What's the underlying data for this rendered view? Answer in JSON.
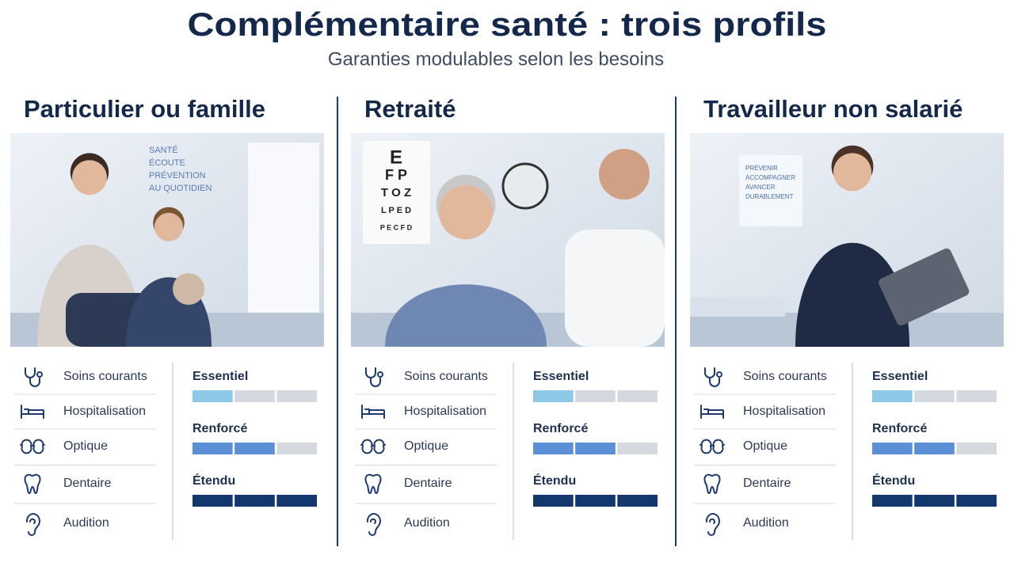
{
  "header": {
    "title": "Complémentaire santé : trois profils",
    "subtitle": "Garanties modulables selon les besoins"
  },
  "profiles": [
    {
      "title": "Particulier ou famille",
      "photo_text": [
        "SANTÉ",
        "ÉCOUTE",
        "PRÉVENTION",
        "AU QUOTIDIEN"
      ],
      "items": [
        "Soins courants",
        "Hospitalisation",
        "Optique",
        "Dentaire",
        "Audition"
      ],
      "levels": [
        {
          "name": "Essentiel",
          "filled": 1,
          "total": 3
        },
        {
          "name": "Renforcé",
          "filled": 2,
          "total": 3
        },
        {
          "name": "Étendu",
          "filled": 3,
          "total": 3
        }
      ]
    },
    {
      "title": "Retraité",
      "photo_text": [
        "E",
        "F P",
        "T O Z",
        "L P E D",
        "P E C F D"
      ],
      "items": [
        "Soins courants",
        "Hospitalisation",
        "Optique",
        "Dentaire",
        "Audition"
      ],
      "levels": [
        {
          "name": "Essentiel",
          "filled": 1,
          "total": 3
        },
        {
          "name": "Renforcé",
          "filled": 2,
          "total": 3
        },
        {
          "name": "Étendu",
          "filled": 3,
          "total": 3
        }
      ]
    },
    {
      "title": "Travailleur non salarié",
      "photo_text": [
        "PRÉVENIR",
        "ACCOMPAGNER",
        "AVANCER",
        "DURABLEMENT"
      ],
      "items": [
        "Soins courants",
        "Hospitalisation",
        "Optique",
        "Dentaire",
        "Audition"
      ],
      "levels": [
        {
          "name": "Essentiel",
          "filled": 1,
          "total": 3
        },
        {
          "name": "Renforcé",
          "filled": 2,
          "total": 3
        },
        {
          "name": "Étendu",
          "filled": 3,
          "total": 3
        }
      ]
    }
  ]
}
